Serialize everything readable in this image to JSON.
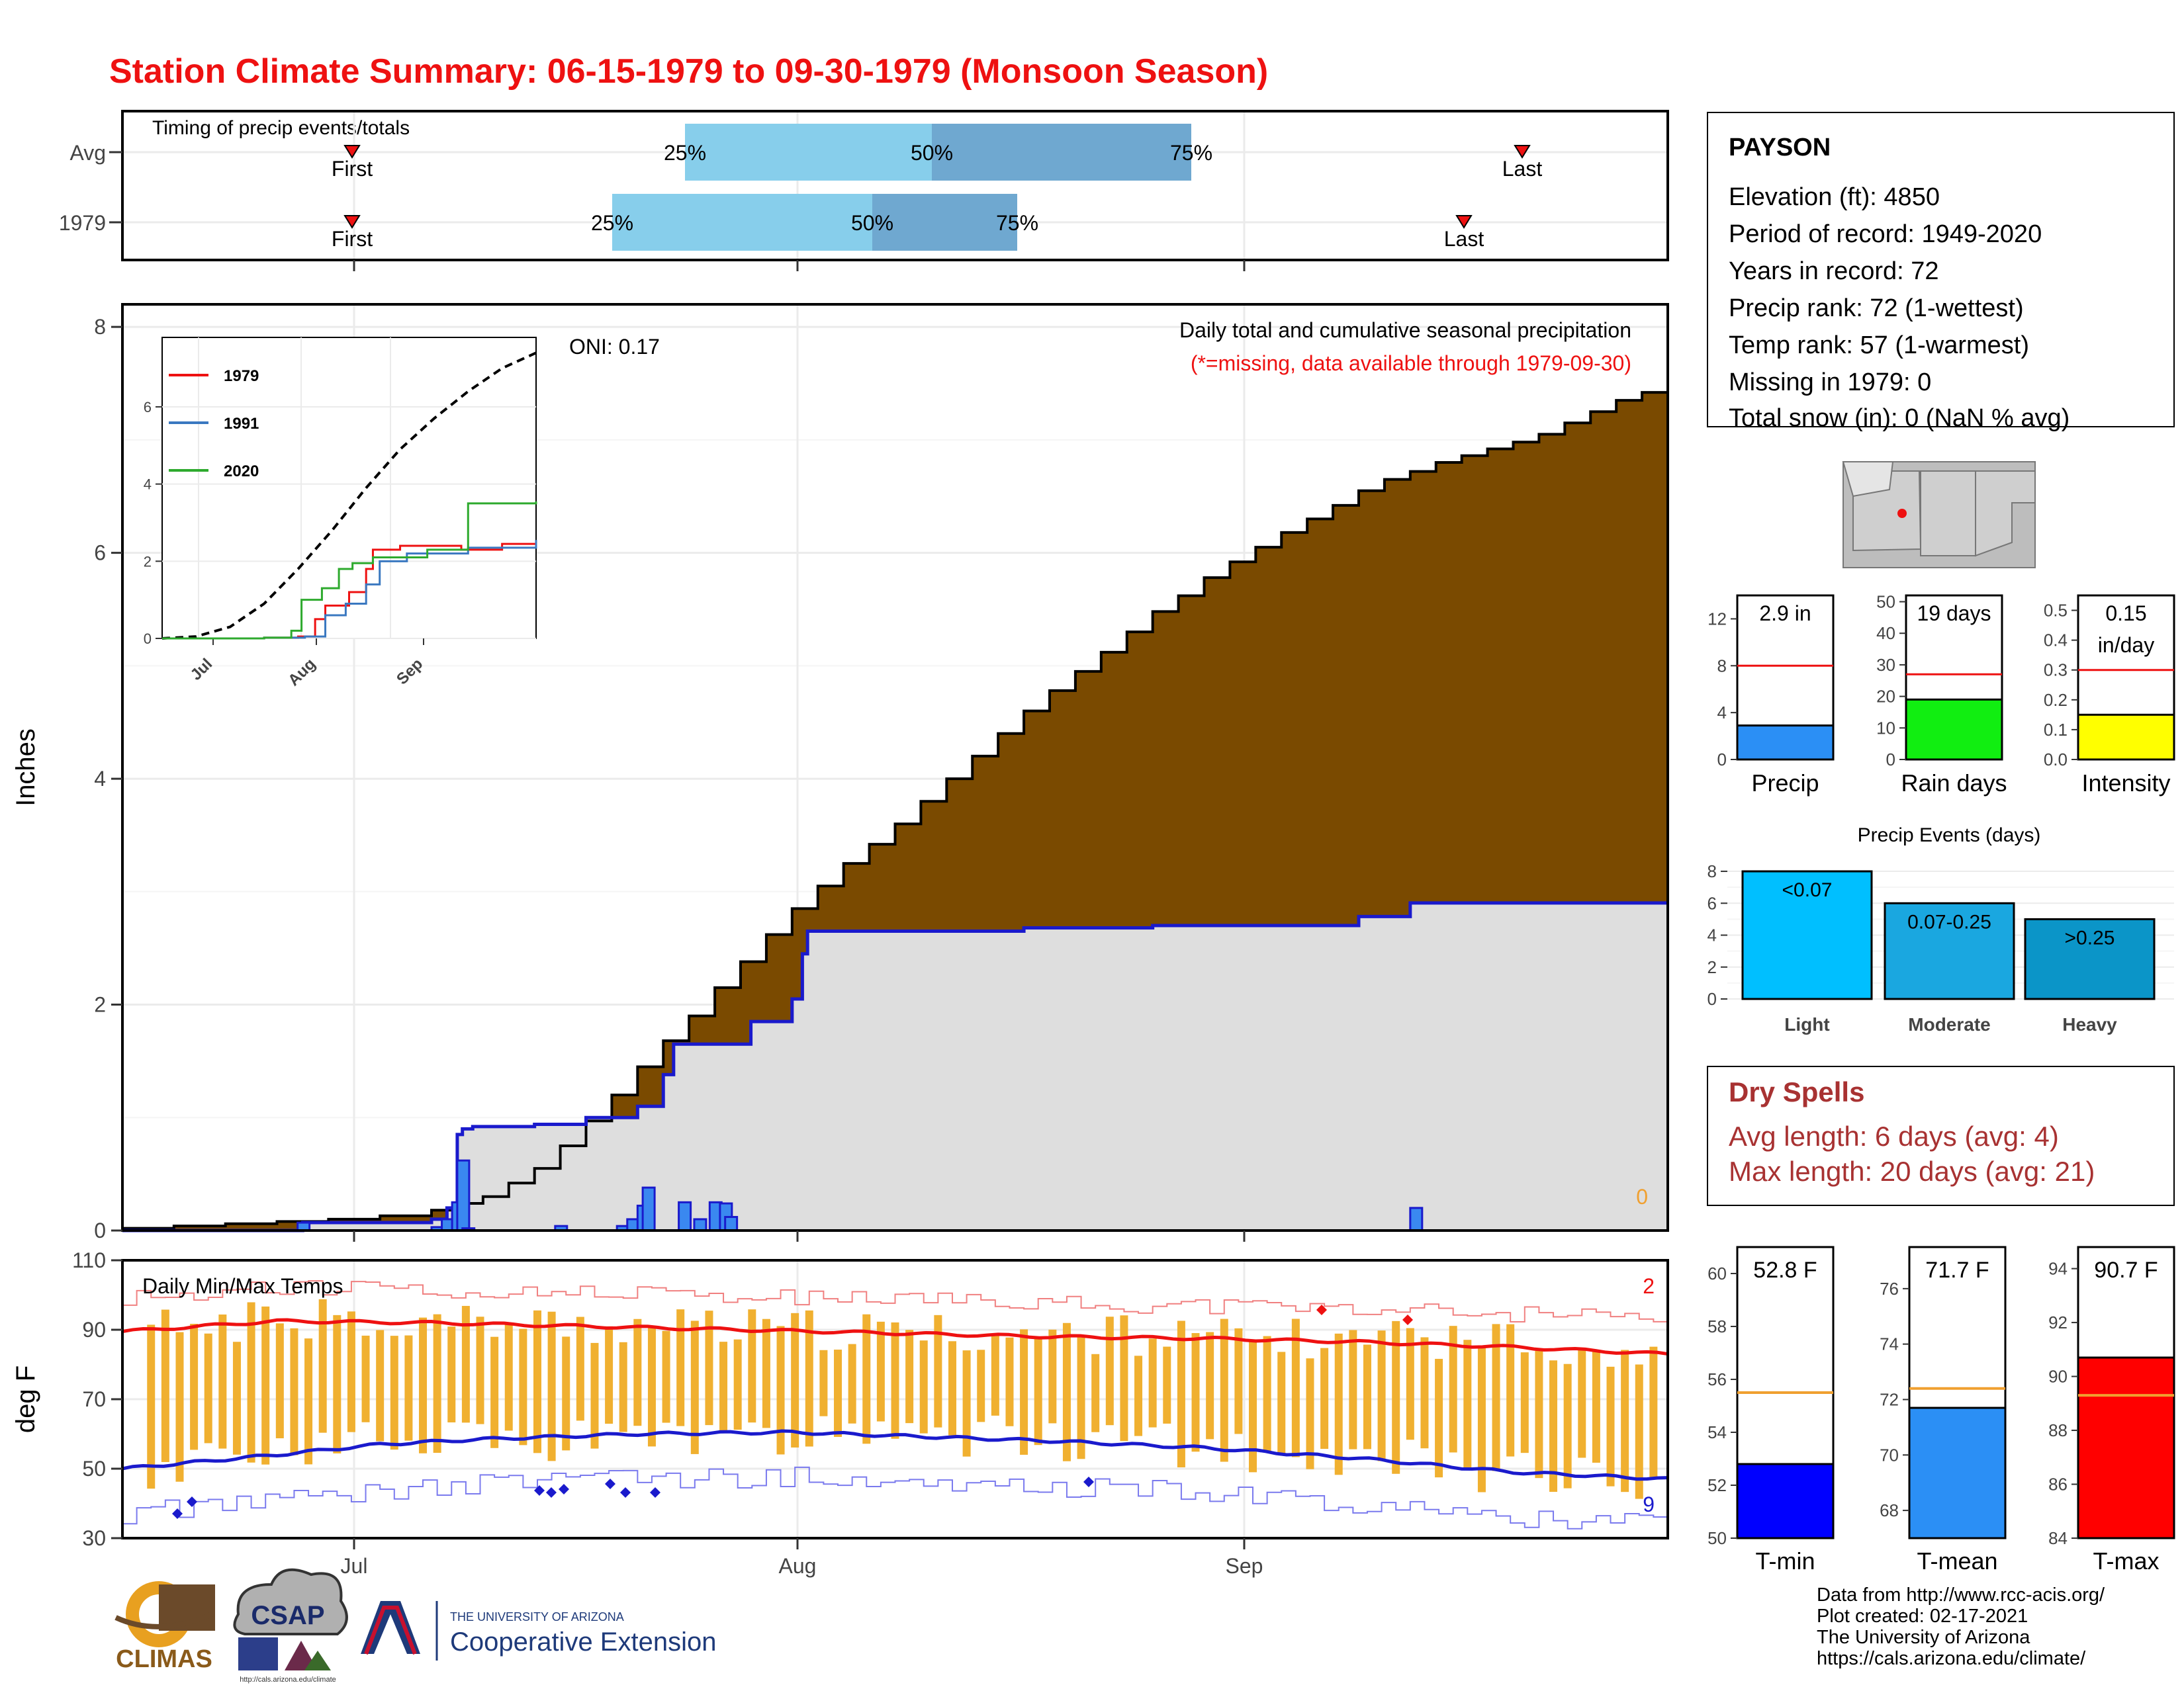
{
  "title": "Station Climate Summary: 06-15-1979 to 09-30-1979 (Monsoon Season)",
  "colors": {
    "title": "#ee1111",
    "cumulative_1979": "#7a4a00",
    "cumulative_avg": "#e0e0e0",
    "avg_line": "#1a1acc",
    "daily_bar": "#3a88f0",
    "temp_bar": "#f0b030",
    "tmax_line": "#ee1111",
    "tmin_line": "#1a1acc",
    "dry_spell_text": "#a83232"
  },
  "timing": {
    "label": "Timing of precip events/totals",
    "rows": [
      {
        "name": "Avg",
        "first": "First",
        "last": "Last",
        "q25": "25%",
        "q50": "50%",
        "q75": "75%",
        "first_day": 0,
        "q25_day": 0,
        "q50_day": 0,
        "q75_day": 0,
        "last_day": 0
      },
      {
        "name": "1979",
        "first": "First",
        "last": "Last",
        "q25": "25%",
        "q50": "50%",
        "q75": "75%",
        "first_day": 0,
        "q25_day": 0,
        "q50_day": 0,
        "q75_day": 0,
        "last_day": 0
      }
    ]
  },
  "chart_data": [
    {
      "type": "area",
      "title": "Daily total and cumulative seasonal precipitation",
      "subtitle": "(*=missing, data available through 1979-09-30)",
      "ylabel": "Inches",
      "ylim": [
        0,
        8.2
      ],
      "yticks": [
        "0",
        "2",
        "4",
        "6",
        "8"
      ],
      "xticks": [
        "Jul",
        "Aug",
        "Sep"
      ],
      "oni": "ONI: 0.17",
      "missing_count": "0",
      "cumulative_avg_breaks": [
        [
          0,
          0.02
        ],
        [
          10,
          0.04
        ],
        [
          20,
          0.06
        ],
        [
          30,
          0.08
        ],
        [
          40,
          0.1
        ],
        [
          50,
          0.13
        ],
        [
          60,
          0.18
        ],
        [
          65,
          0.24
        ],
        [
          70,
          0.3
        ],
        [
          75,
          0.42
        ],
        [
          80,
          0.55
        ],
        [
          85,
          0.75
        ],
        [
          90,
          0.97
        ],
        [
          95,
          1.2
        ],
        [
          100,
          1.45
        ],
        [
          105,
          1.68
        ],
        [
          110,
          1.9
        ],
        [
          115,
          2.15
        ],
        [
          120,
          2.38
        ],
        [
          125,
          2.62
        ],
        [
          130,
          2.85
        ],
        [
          135,
          3.05
        ],
        [
          140,
          3.25
        ],
        [
          145,
          3.42
        ],
        [
          150,
          3.6
        ],
        [
          155,
          3.8
        ],
        [
          160,
          4.0
        ],
        [
          165,
          4.2
        ],
        [
          170,
          4.4
        ],
        [
          175,
          4.6
        ],
        [
          180,
          4.78
        ],
        [
          185,
          4.95
        ],
        [
          190,
          5.12
        ],
        [
          195,
          5.3
        ],
        [
          200,
          5.48
        ],
        [
          205,
          5.62
        ],
        [
          210,
          5.78
        ],
        [
          215,
          5.92
        ],
        [
          220,
          6.05
        ],
        [
          225,
          6.18
        ],
        [
          230,
          6.3
        ],
        [
          235,
          6.42
        ],
        [
          240,
          6.55
        ],
        [
          245,
          6.65
        ],
        [
          250,
          6.72
        ],
        [
          255,
          6.8
        ],
        [
          260,
          6.86
        ],
        [
          265,
          6.92
        ],
        [
          270,
          6.98
        ],
        [
          275,
          7.05
        ],
        [
          280,
          7.15
        ],
        [
          285,
          7.25
        ],
        [
          290,
          7.35
        ],
        [
          295,
          7.42
        ],
        [
          300,
          7.46
        ]
      ],
      "cumulative_1979_breaks": [
        [
          0,
          0.0
        ],
        [
          34,
          0.0
        ],
        [
          35,
          0.07
        ],
        [
          58,
          0.07
        ],
        [
          60,
          0.1
        ],
        [
          63,
          0.2
        ],
        [
          65,
          0.85
        ],
        [
          66,
          0.9
        ],
        [
          68,
          0.92
        ],
        [
          80,
          0.94
        ],
        [
          90,
          1.0
        ],
        [
          100,
          1.1
        ],
        [
          105,
          1.38
        ],
        [
          107,
          1.65
        ],
        [
          120,
          1.65
        ],
        [
          122,
          1.85
        ],
        [
          130,
          2.05
        ],
        [
          132,
          2.45
        ],
        [
          133,
          2.65
        ],
        [
          175,
          2.68
        ],
        [
          200,
          2.7
        ],
        [
          240,
          2.78
        ],
        [
          250,
          2.9
        ],
        [
          300,
          2.9
        ]
      ],
      "daily_bars": [
        [
          34,
          0.07
        ],
        [
          60,
          0.03
        ],
        [
          62,
          0.1
        ],
        [
          64,
          0.25
        ],
        [
          65,
          0.62
        ],
        [
          66,
          0.02
        ],
        [
          84,
          0.04
        ],
        [
          96,
          0.04
        ],
        [
          98,
          0.1
        ],
        [
          100,
          0.22
        ],
        [
          101,
          0.38
        ],
        [
          108,
          0.25
        ],
        [
          111,
          0.1
        ],
        [
          114,
          0.25
        ],
        [
          116,
          0.24
        ],
        [
          117,
          0.12
        ],
        [
          250,
          0.2
        ]
      ],
      "x_days_total": 108,
      "inset": {
        "series": [
          {
            "name": "1979",
            "color": "#ee1111",
            "points": [
              [
                0,
                0
              ],
              [
                30,
                0.02
              ],
              [
                40,
                0.05
              ],
              [
                45,
                0.5
              ],
              [
                48,
                0.85
              ],
              [
                55,
                1.2
              ],
              [
                60,
                1.8
              ],
              [
                62,
                2.3
              ],
              [
                70,
                2.4
              ],
              [
                88,
                2.3
              ],
              [
                100,
                2.45
              ],
              [
                110,
                2.5
              ]
            ]
          },
          {
            "name": "1991",
            "color": "#3a78c0",
            "points": [
              [
                0,
                0
              ],
              [
                30,
                0.02
              ],
              [
                42,
                0.05
              ],
              [
                48,
                0.6
              ],
              [
                54,
                0.9
              ],
              [
                60,
                1.4
              ],
              [
                64,
                2.0
              ],
              [
                72,
                2.2
              ],
              [
                90,
                2.35
              ],
              [
                110,
                2.55
              ]
            ]
          },
          {
            "name": "2020",
            "color": "#2eaa2e",
            "points": [
              [
                0,
                0
              ],
              [
                30,
                0.02
              ],
              [
                38,
                0.2
              ],
              [
                41,
                1.0
              ],
              [
                47,
                1.3
              ],
              [
                52,
                1.8
              ],
              [
                56,
                1.95
              ],
              [
                62,
                2.1
              ],
              [
                78,
                2.3
              ],
              [
                90,
                3.5
              ],
              [
                110,
                3.55
              ]
            ]
          }
        ],
        "avg_points": [
          [
            0,
            0
          ],
          [
            10,
            0.05
          ],
          [
            20,
            0.3
          ],
          [
            30,
            0.9
          ],
          [
            40,
            1.8
          ],
          [
            50,
            2.8
          ],
          [
            60,
            3.9
          ],
          [
            70,
            4.9
          ],
          [
            80,
            5.7
          ],
          [
            90,
            6.4
          ],
          [
            100,
            7.0
          ],
          [
            110,
            7.4
          ]
        ],
        "yticks": [
          "0",
          "2",
          "4",
          "6"
        ],
        "xticks": [
          "Jul",
          "Aug",
          "Sep"
        ]
      }
    },
    {
      "type": "bar",
      "title": "Daily Min/Max Temps",
      "ylabel": "deg F",
      "ylim": [
        30,
        110
      ],
      "yticks": [
        "30",
        "50",
        "70",
        "90",
        "110"
      ],
      "xticks": [
        "Jul",
        "Aug",
        "Sep"
      ],
      "record_high_count": "2",
      "record_low_count": "9",
      "tmax_avg_points": [
        [
          0,
          89.5
        ],
        [
          15,
          91
        ],
        [
          30,
          92.5
        ],
        [
          60,
          92
        ],
        [
          90,
          91
        ],
        [
          120,
          90
        ],
        [
          150,
          89
        ],
        [
          180,
          88
        ],
        [
          210,
          87.5
        ],
        [
          240,
          86.5
        ],
        [
          270,
          85
        ],
        [
          300,
          83
        ]
      ],
      "tmin_avg_points": [
        [
          0,
          50
        ],
        [
          15,
          52
        ],
        [
          30,
          54
        ],
        [
          50,
          57
        ],
        [
          70,
          58.5
        ],
        [
          100,
          60
        ],
        [
          130,
          60.5
        ],
        [
          150,
          59.5
        ],
        [
          180,
          58
        ],
        [
          210,
          56
        ],
        [
          240,
          53
        ],
        [
          270,
          49
        ],
        [
          300,
          47
        ]
      ],
      "daily_ranges_seed": 1979
    }
  ],
  "station": {
    "name": "PAYSON",
    "elevation": "Elevation (ft): 4850",
    "period": "Period of record: 1949-2020",
    "years": "Years in record: 72",
    "precip_rank": "Precip rank: 72 (1-wettest)",
    "temp_rank": "Temp rank: 57 (1-warmest)",
    "missing": "Missing in 1979: 0",
    "snow": "Total snow (in): 0 (NaN % avg)"
  },
  "mini_bars": [
    {
      "label": "Precip",
      "value_label": "2.9 in",
      "value": 2.9,
      "avg": 8,
      "ymax": 14,
      "ticks": [
        "0",
        "4",
        "8",
        "12"
      ],
      "tick_vals": [
        0,
        4,
        8,
        12
      ],
      "color": "#2b8ff5"
    },
    {
      "label": "Rain days",
      "value_label": "19 days",
      "value": 19,
      "avg": 27,
      "ymax": 52,
      "ticks": [
        "0",
        "10",
        "20",
        "30",
        "40",
        "50"
      ],
      "tick_vals": [
        0,
        10,
        20,
        30,
        40,
        50
      ],
      "color": "#11ee11"
    },
    {
      "label": "Intensity",
      "value_label": "0.15",
      "value_label2": "in/day",
      "value": 0.15,
      "avg": 0.3,
      "ymax": 0.55,
      "ticks": [
        "0.0",
        "0.1",
        "0.2",
        "0.3",
        "0.4",
        "0.5"
      ],
      "tick_vals": [
        0,
        0.1,
        0.2,
        0.3,
        0.4,
        0.5
      ],
      "color": "#ffff00"
    }
  ],
  "events": {
    "title": "Precip Events (days)",
    "ticks": [
      "0",
      "2",
      "4",
      "6",
      "8"
    ],
    "bars": [
      {
        "label": "Light",
        "range": "<0.07",
        "value": 8,
        "color": "#00bfff"
      },
      {
        "label": "Moderate",
        "range": "0.07-0.25",
        "value": 6,
        "color": "#1aa7e0"
      },
      {
        "label": "Heavy",
        "range": ">0.25",
        "value": 5,
        "color": "#0b95c8"
      }
    ]
  },
  "dry_spells": {
    "title": "Dry Spells",
    "avg": "Avg length: 6 days (avg: 4)",
    "max": "Max length: 20 days (avg: 21)"
  },
  "temp_bars": [
    {
      "label": "T-min",
      "value_label": "52.8 F",
      "value": 52.8,
      "avg": 55.5,
      "ymin": 50,
      "ymax": 61,
      "ticks": [
        "50",
        "52",
        "54",
        "56",
        "58",
        "60"
      ],
      "tick_vals": [
        50,
        52,
        54,
        56,
        58,
        60
      ],
      "color": "#0000ff"
    },
    {
      "label": "T-mean",
      "value_label": "71.7 F",
      "value": 71.7,
      "avg": 72.4,
      "ymin": 67,
      "ymax": 77.5,
      "ticks": [
        "68",
        "70",
        "72",
        "74",
        "76"
      ],
      "tick_vals": [
        68,
        70,
        72,
        74,
        76
      ],
      "color": "#2b8ff5"
    },
    {
      "label": "T-max",
      "value_label": "90.7 F",
      "value": 90.7,
      "avg": 89.3,
      "ymin": 84,
      "ymax": 94.8,
      "ticks": [
        "84",
        "86",
        "88",
        "90",
        "92",
        "94"
      ],
      "tick_vals": [
        84,
        86,
        88,
        90,
        92,
        94
      ],
      "color": "#ff0000"
    }
  ],
  "footer": {
    "line1": "Data from http://www.rcc-acis.org/",
    "line2": "Plot created: 02-17-2021",
    "line3": "The University of Arizona",
    "line4": "https://cals.arizona.edu/climate/"
  },
  "logos": {
    "climas": "CLIMAS",
    "csap": "CSAP",
    "csap_url": "http://cals.arizona.edu/climate",
    "ua_small": "THE UNIVERSITY OF ARIZONA",
    "ua_big": "Cooperative Extension"
  }
}
